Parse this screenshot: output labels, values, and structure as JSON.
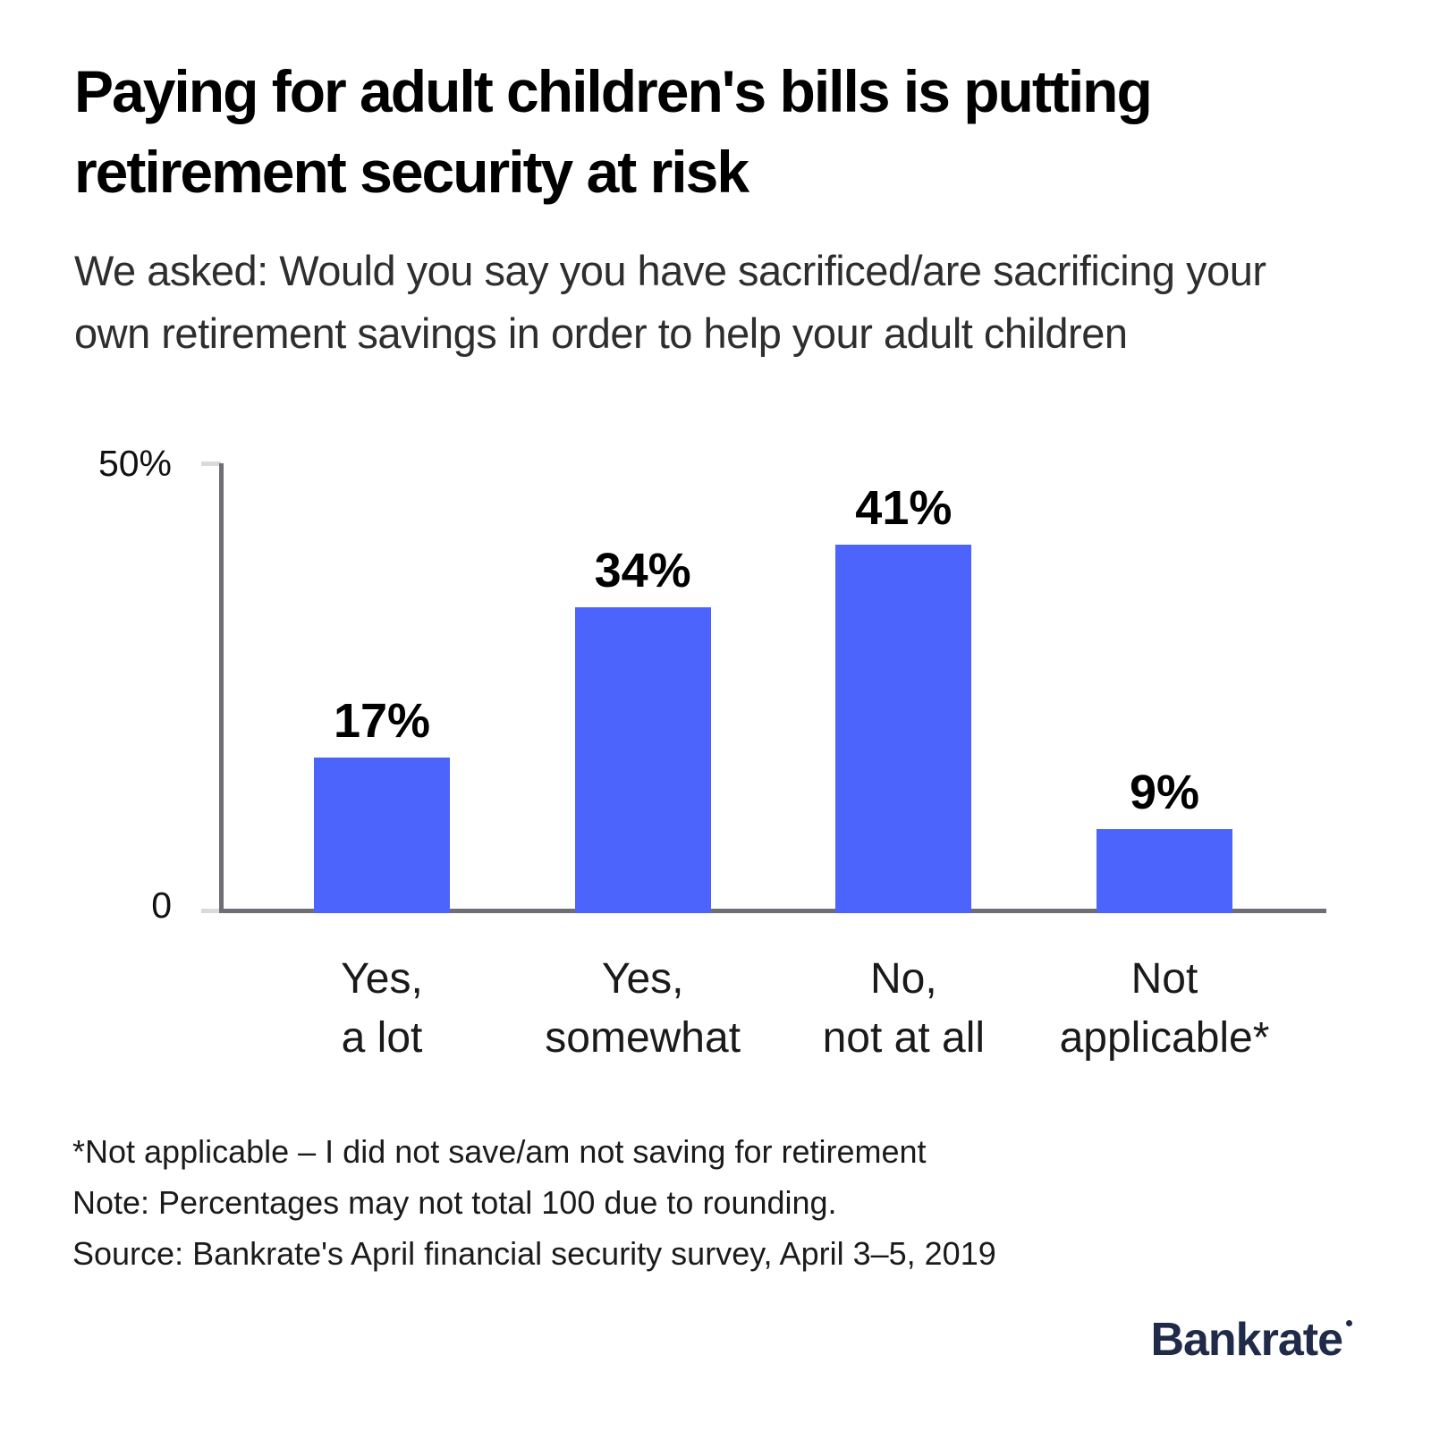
{
  "title": "Paying for adult children's bills is putting\nretirement security at risk",
  "subtitle": "We asked: Would you say you have sacrificed/are sacrificing your\nown retirement savings in order to help your adult children",
  "chart_data": {
    "type": "bar",
    "categories": [
      "Yes,\na lot",
      "Yes,\nsomewhat",
      "No,\nnot at all",
      "Not\napplicable*"
    ],
    "values": [
      17,
      34,
      41,
      9
    ],
    "value_labels": [
      "17%",
      "34%",
      "41%",
      "9%"
    ],
    "title": "",
    "xlabel": "",
    "ylabel": "",
    "ylim": [
      0,
      50
    ],
    "yticks": [
      {
        "value": 0,
        "label": "0"
      },
      {
        "value": 50,
        "label": "50%"
      }
    ],
    "grid": false,
    "legend": "none",
    "bar_color": "#4C64FC",
    "axis_color": "#6E6E74",
    "tick_color": "#D9D9DE",
    "value_label_color": "#000000",
    "category_label_color": "#1A1A1A"
  },
  "footnotes": [
    "*Not applicable – I did not save/am not saving for retirement",
    "Note: Percentages may not total 100 due to rounding.",
    "Source: Bankrate's April financial security survey, April 3–5, 2019"
  ],
  "logo": {
    "text": "Bankrate",
    "color": "#1F2B49"
  }
}
